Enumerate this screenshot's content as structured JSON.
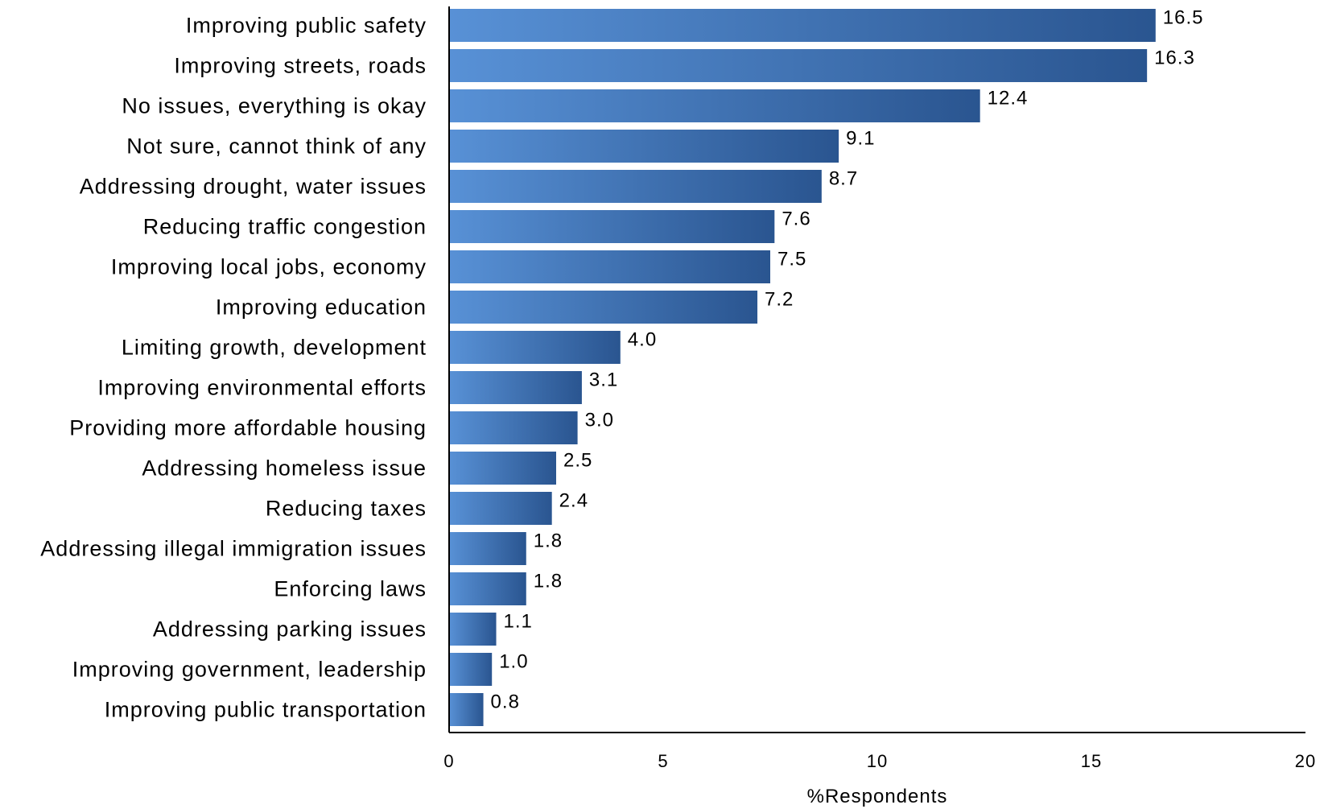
{
  "chart_data": {
    "type": "bar",
    "orientation": "horizontal",
    "categories": [
      "Improving public safety",
      "Improving streets, roads",
      "No issues, everything is okay",
      "Not sure, cannot think of any",
      "Addressing drought, water issues",
      "Reducing traffic congestion",
      "Improving local jobs, economy",
      "Improving education",
      "Limiting growth, development",
      "Improving environmental efforts",
      "Providing more affordable housing",
      "Addressing homeless issue",
      "Reducing taxes",
      "Addressing illegal immigration issues",
      "Enforcing laws",
      "Addressing parking issues",
      "Improving government, leadership",
      "Improving public transportation"
    ],
    "values": [
      16.5,
      16.3,
      12.4,
      9.1,
      8.7,
      7.6,
      7.5,
      7.2,
      4.0,
      3.1,
      3.0,
      2.5,
      2.4,
      1.8,
      1.8,
      1.1,
      1.0,
      0.8
    ],
    "value_labels": [
      "16.5",
      "16.3",
      "12.4",
      "9.1",
      "8.7",
      "7.6",
      "7.5",
      "7.2",
      "4.0",
      "3.1",
      "3.0",
      "2.5",
      "2.4",
      "1.8",
      "1.8",
      "1.1",
      "1.0",
      "0.8"
    ],
    "xlabel": "%Respondents",
    "ylabel": "",
    "xlim": [
      0,
      20
    ],
    "xticks": [
      "0",
      "5",
      "10",
      "15",
      "20"
    ],
    "grid": false,
    "colors": {
      "bar_light": "#5891d6",
      "bar_dark": "#2a5590",
      "axis": "#000000"
    }
  }
}
